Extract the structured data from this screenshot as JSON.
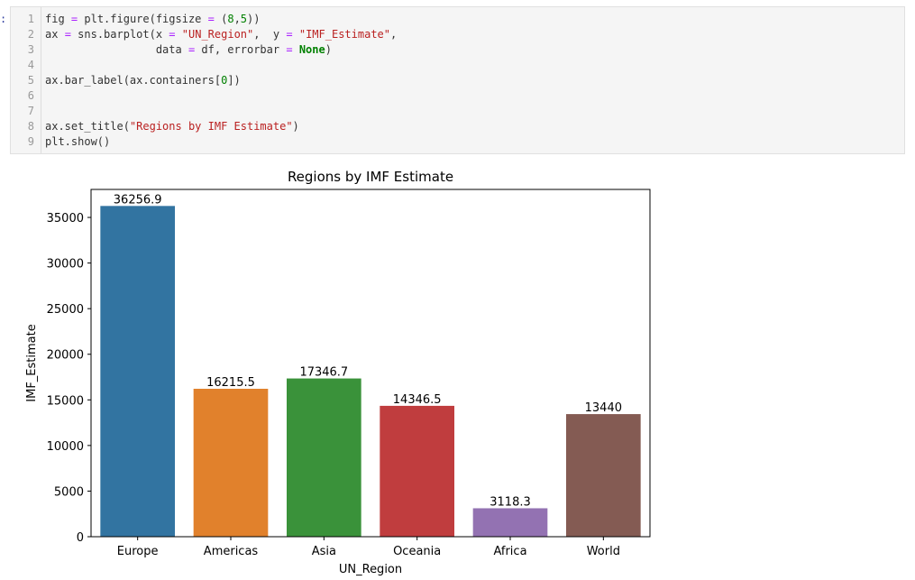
{
  "notebook": {
    "prompt": ":",
    "cell": {
      "lines": [
        {
          "n": "1",
          "tokens": [
            [
              "fig ",
              ""
            ],
            [
              "=",
              "op"
            ],
            [
              " plt.figure(figsize ",
              ""
            ],
            [
              "=",
              "op"
            ],
            [
              " (",
              ""
            ],
            [
              "8",
              "num"
            ],
            [
              ",",
              ""
            ],
            [
              "5",
              "num"
            ],
            [
              "))",
              ""
            ]
          ]
        },
        {
          "n": "2",
          "tokens": [
            [
              "ax ",
              ""
            ],
            [
              "=",
              "op"
            ],
            [
              " sns.barplot(x ",
              ""
            ],
            [
              "=",
              "op"
            ],
            [
              " ",
              ""
            ],
            [
              "\"UN_Region\"",
              "str"
            ],
            [
              ",  y ",
              ""
            ],
            [
              "=",
              "op"
            ],
            [
              " ",
              ""
            ],
            [
              "\"IMF_Estimate\"",
              "str"
            ],
            [
              ",",
              ""
            ]
          ]
        },
        {
          "n": "3",
          "tokens": [
            [
              "                 data ",
              ""
            ],
            [
              "=",
              "op"
            ],
            [
              " df, errorbar ",
              ""
            ],
            [
              "=",
              "op"
            ],
            [
              " ",
              ""
            ],
            [
              "None",
              "kw"
            ],
            [
              ")",
              ""
            ]
          ]
        },
        {
          "n": "4",
          "tokens": []
        },
        {
          "n": "5",
          "tokens": [
            [
              "ax.bar_label(ax.containers[",
              ""
            ],
            [
              "0",
              "num"
            ],
            [
              "])",
              ""
            ]
          ]
        },
        {
          "n": "6",
          "tokens": []
        },
        {
          "n": "7",
          "tokens": []
        },
        {
          "n": "8",
          "tokens": [
            [
              "ax.set_title(",
              ""
            ],
            [
              "\"Regions by IMF Estimate\"",
              "str"
            ],
            [
              ")",
              ""
            ]
          ]
        },
        {
          "n": "9",
          "tokens": [
            [
              "plt.show()",
              ""
            ]
          ]
        }
      ]
    }
  },
  "chart_data": {
    "type": "bar",
    "title": "Regions by IMF Estimate",
    "xlabel": "UN_Region",
    "ylabel": "IMF_Estimate",
    "categories": [
      "Europe",
      "Americas",
      "Asia",
      "Oceania",
      "Africa",
      "World"
    ],
    "values": [
      36256.9,
      16215.5,
      17346.7,
      14346.5,
      3118.3,
      13440
    ],
    "bar_labels": [
      "36256.9",
      "16215.5",
      "17346.7",
      "14346.5",
      "3118.3",
      "13440"
    ],
    "colors": [
      "#3274a1",
      "#e1812c",
      "#3a923a",
      "#c03d3e",
      "#9372b2",
      "#845b53"
    ],
    "yticks": [
      0,
      5000,
      10000,
      15000,
      20000,
      25000,
      30000,
      35000
    ],
    "ylim": [
      0,
      38070
    ],
    "grid": false,
    "legend": "none"
  }
}
